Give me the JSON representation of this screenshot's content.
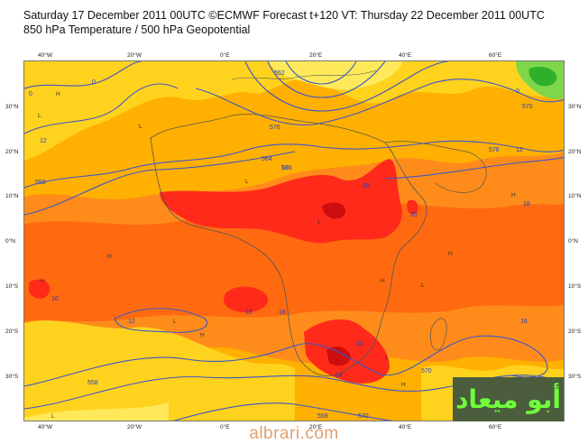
{
  "header": {
    "line1": "Saturday 17 December 2011 00UTC ©ECMWF Forecast t+120 VT: Thursday 22 December 2011 00UTC",
    "line2": "850 hPa Temperature / 500 hPa Geopotential"
  },
  "axes": {
    "lon_top": [
      "40°W",
      "20°W",
      "0°E",
      "20°E",
      "40°E",
      "60°E"
    ],
    "lon_bottom": [
      "40°W",
      "20°W",
      "0°E",
      "20°E",
      "40°E",
      "60°E"
    ],
    "lat_left": [
      "30°N",
      "20°N",
      "10°N",
      "0°N",
      "10°S",
      "20°S",
      "30°S"
    ],
    "lat_right": [
      "30°N",
      "20°N",
      "10°N",
      "0°N",
      "10°S",
      "20°S",
      "30°S"
    ]
  },
  "contour_labels": [
    "576",
    "576",
    "576",
    "570",
    "564",
    "558",
    "558",
    "558",
    "570",
    "552",
    "570"
  ],
  "temp_labels": [
    "0",
    "0",
    "0",
    "12",
    "12",
    "12",
    "16",
    "16",
    "16",
    "18",
    "18",
    "18",
    "20",
    "20",
    "20",
    "24"
  ],
  "pressure_marks": [
    "H",
    "H",
    "H",
    "H",
    "H",
    "H",
    "H",
    "H",
    "L",
    "L",
    "L",
    "L",
    "L",
    "L",
    "L",
    "L"
  ],
  "watermark": {
    "text": "أبو ميعاد",
    "bg": "#4b5d3d",
    "color": "#6fff3a"
  },
  "site_text": "albrari.com",
  "colors": {
    "yellow": "#ffd21e",
    "light_orange": "#ffb000",
    "orange": "#ff8c1a",
    "dark_orange": "#ff6a10",
    "red": "#ff2a1a",
    "dark_red": "#cc0e0e",
    "green": "#7ed64a",
    "coast": "#555555",
    "contour": "#3d56c8"
  }
}
